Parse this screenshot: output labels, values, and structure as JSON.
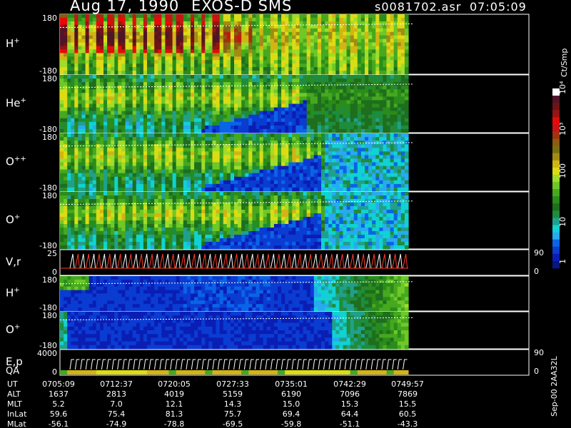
{
  "header": {
    "date": "Aug 17, 1990",
    "instrument": "EXOS-D SMS",
    "file": "s0081702.asr",
    "time": "07:05:09"
  },
  "footer": {
    "stamp": "Sep-00 2AA32L"
  },
  "colorbar": {
    "label": "Ct/Smp",
    "ticks": [
      "1",
      "10",
      "100",
      "10³",
      "10⁴"
    ],
    "colors": [
      "#0a1482",
      "#0a1eb4",
      "#0a3cd2",
      "#0a64e6",
      "#28aaf0",
      "#10d2d2",
      "#20a08c",
      "#1e8c3c",
      "#1e6e1e",
      "#2a8c1a",
      "#46a81e",
      "#6ec828",
      "#a0dc28",
      "#dcdc14",
      "#d2b414",
      "#a08c14",
      "#7a6e14",
      "#8c5a10",
      "#a03210",
      "#c81414",
      "#e60a0a",
      "#961414",
      "#6e1414",
      "#501428",
      "#ffffff"
    ]
  },
  "chart_data": {
    "type": "heatmap",
    "title": "Aug 17, 1990   EXOS-D SMS",
    "panels": [
      {
        "id": "h1",
        "label": "H",
        "sup": "+",
        "ymin": "-180",
        "ymax": "180",
        "kind": "spec"
      },
      {
        "id": "he",
        "label": "He",
        "sup": "+",
        "ymin": "-180",
        "ymax": "180",
        "kind": "spec"
      },
      {
        "id": "opp",
        "label": "O",
        "sup": "++",
        "ymin": "-180",
        "ymax": "180",
        "kind": "spec"
      },
      {
        "id": "o1",
        "label": "O",
        "sup": "+",
        "ymin": "-180",
        "ymax": "180",
        "kind": "spec"
      },
      {
        "id": "vr",
        "label": "V,r",
        "sup": "",
        "ymin": "0",
        "ymax": "25",
        "rmin": "0",
        "rmax": "90",
        "kind": "line"
      },
      {
        "id": "h2",
        "label": "H",
        "sup": "+",
        "ymin": "-180",
        "ymax": "180",
        "kind": "spec"
      },
      {
        "id": "o2",
        "label": "O",
        "sup": "+",
        "ymin": "-180",
        "ymax": "180",
        "kind": "spec"
      },
      {
        "id": "ep",
        "label": "E,p",
        "sup": "",
        "label2": "QA",
        "ymin": "0",
        "ymax": "4000",
        "rmin": "0",
        "rmax": "90",
        "kind": "line"
      }
    ],
    "x_axis": {
      "row_labels": [
        "UT",
        "ALT",
        "MLT",
        "InLat",
        "MLat"
      ],
      "columns": [
        {
          "UT": "0705:09",
          "ALT": "1637",
          "MLT": "5.2",
          "InLat": "59.6",
          "MLat": "-56.1"
        },
        {
          "UT": "0712:37",
          "ALT": "2813",
          "MLT": "7.0",
          "InLat": "75.4",
          "MLat": "-74.9"
        },
        {
          "UT": "0720:05",
          "ALT": "4019",
          "MLT": "12.1",
          "InLat": "81.3",
          "MLat": "-78.8"
        },
        {
          "UT": "0727:33",
          "ALT": "5159",
          "MLT": "14.3",
          "InLat": "75.7",
          "MLat": "-69.5"
        },
        {
          "UT": "0735:01",
          "ALT": "6190",
          "MLT": "15.0",
          "InLat": "69.4",
          "MLat": "-59.8"
        },
        {
          "UT": "0742:29",
          "ALT": "7096",
          "MLT": "15.3",
          "InLat": "64.4",
          "MLat": "-51.1"
        },
        {
          "UT": "0749:57",
          "ALT": "7869",
          "MLT": "15.5",
          "InLat": "60.5",
          "MLat": "-43.3"
        }
      ]
    }
  }
}
